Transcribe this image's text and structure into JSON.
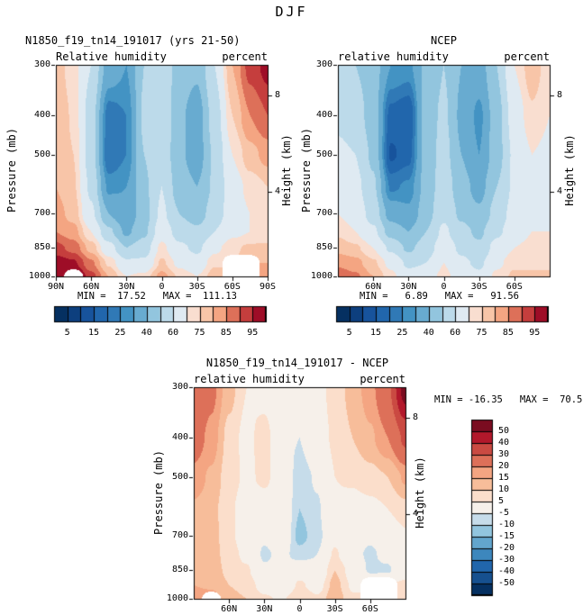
{
  "page_title": "DJF",
  "colors": {
    "background": "#ffffff",
    "axis": "#000000",
    "rh_palette": [
      "#053061",
      "#0d3f7e",
      "#17539c",
      "#2166ac",
      "#3079b6",
      "#4393c3",
      "#68abd0",
      "#92c5de",
      "#bcdaea",
      "#dfeaf2",
      "#f9ded0",
      "#f8c5a8",
      "#f4a582",
      "#dd7059",
      "#c53e3d",
      "#9e0d27"
    ],
    "diff_palette": [
      "#053061",
      "#16508f",
      "#2166ac",
      "#3d87bd",
      "#62a5cd",
      "#92c5de",
      "#c6dcea",
      "#f6f0ea",
      "#fbdecb",
      "#f7bd9a",
      "#f4a582",
      "#dd7059",
      "#ca4a42",
      "#b2182b",
      "#7a0c20"
    ]
  },
  "chart_data": [
    {
      "type": "heatmap",
      "title": "N1850_f19_tn14_191017 (yrs 21-50)",
      "subtitle_left": "Relative humidity",
      "subtitle_right": "percent",
      "ylabel": "Pressure (mb)",
      "ylabel_right": "Height (km)",
      "minmax": "MIN =  17.52   MAX =  111.13",
      "palette": "rh_palette",
      "levels": [
        5,
        10,
        15,
        20,
        25,
        30,
        40,
        50,
        60,
        70,
        75,
        80,
        85,
        90,
        95
      ],
      "colorbar_labels": [
        "5",
        "15",
        "25",
        "40",
        "60",
        "75",
        "85",
        "95"
      ],
      "y_scale": "log",
      "y_range": [
        300,
        1000
      ],
      "x_range": [
        90,
        -90
      ],
      "y_ticks": [
        300,
        400,
        500,
        700,
        850,
        1000
      ],
      "height_ticks": [
        {
          "label": "8",
          "p": 356.5
        },
        {
          "label": "4",
          "p": 616.6
        }
      ],
      "x_ticks": [
        {
          "label": "90N",
          "lat": 90
        },
        {
          "label": "60N",
          "lat": 60
        },
        {
          "label": "30N",
          "lat": 30
        },
        {
          "label": "0",
          "lat": 0
        },
        {
          "label": "30S",
          "lat": -30
        },
        {
          "label": "60S",
          "lat": -60
        },
        {
          "label": "90S",
          "lat": -90
        }
      ],
      "lats": [
        90,
        75,
        60,
        45,
        30,
        15,
        0,
        -15,
        -30,
        -45,
        -60,
        -75,
        -90
      ],
      "pressures": [
        300,
        400,
        500,
        600,
        700,
        775,
        850,
        925,
        1000
      ],
      "values": [
        [
          78,
          72,
          60,
          35,
          30,
          50,
          58,
          45,
          42,
          60,
          80,
          92,
          97
        ],
        [
          80,
          74,
          55,
          22,
          25,
          52,
          60,
          42,
          35,
          55,
          75,
          85,
          90
        ],
        [
          80,
          75,
          55,
          20,
          25,
          50,
          58,
          42,
          35,
          52,
          70,
          78,
          82
        ],
        [
          80,
          76,
          58,
          28,
          30,
          48,
          60,
          45,
          40,
          52,
          66,
          72,
          75
        ],
        [
          82,
          78,
          62,
          40,
          32,
          46,
          62,
          50,
          45,
          55,
          65,
          70,
          72
        ],
        [
          85,
          82,
          70,
          52,
          38,
          48,
          66,
          56,
          52,
          60,
          68,
          70,
          72
        ],
        [
          92,
          88,
          78,
          64,
          50,
          55,
          72,
          62,
          58,
          68,
          74,
          76,
          76
        ],
        [
          98,
          96,
          86,
          74,
          62,
          62,
          76,
          68,
          64,
          74,
          null,
          null,
          80
        ],
        [
          104,
          null,
          92,
          80,
          70,
          72,
          82,
          74,
          70,
          78,
          null,
          null,
          85
        ]
      ]
    },
    {
      "type": "heatmap",
      "title": "NCEP",
      "subtitle_left": "relative humidity",
      "subtitle_right": "percent",
      "ylabel": "Pressure (mb)",
      "ylabel_right": "Height (km)",
      "minmax": "MIN =   6.89   MAX =   91.56",
      "palette": "rh_palette",
      "levels": [
        5,
        10,
        15,
        20,
        25,
        30,
        40,
        50,
        60,
        70,
        75,
        80,
        85,
        90,
        95
      ],
      "colorbar_labels": [
        "5",
        "15",
        "25",
        "40",
        "60",
        "75",
        "85",
        "95"
      ],
      "y_scale": "log",
      "y_range": [
        300,
        1000
      ],
      "x_range": [
        90,
        -90
      ],
      "y_ticks": [
        300,
        400,
        500,
        700,
        850,
        1000
      ],
      "height_ticks": [
        {
          "label": "8",
          "p": 356.5
        },
        {
          "label": "4",
          "p": 616.6
        }
      ],
      "x_ticks": [
        {
          "label": "60N",
          "lat": 60
        },
        {
          "label": "30N",
          "lat": 30
        },
        {
          "label": "0",
          "lat": 0
        },
        {
          "label": "30S",
          "lat": -30
        },
        {
          "label": "60S",
          "lat": -60
        }
      ],
      "lats": [
        90,
        75,
        60,
        45,
        30,
        15,
        0,
        -15,
        -30,
        -45,
        -60,
        -75,
        -90
      ],
      "pressures": [
        300,
        400,
        500,
        600,
        700,
        775,
        850,
        925,
        1000
      ],
      "values": [
        [
          52,
          50,
          45,
          30,
          28,
          42,
          50,
          40,
          35,
          50,
          70,
          78,
          72
        ],
        [
          58,
          55,
          45,
          18,
          15,
          45,
          52,
          38,
          28,
          46,
          65,
          74,
          70
        ],
        [
          62,
          60,
          48,
          14,
          18,
          44,
          54,
          40,
          30,
          46,
          62,
          70,
          68
        ],
        [
          66,
          63,
          52,
          24,
          26,
          44,
          56,
          44,
          36,
          50,
          62,
          68,
          68
        ],
        [
          70,
          66,
          56,
          36,
          32,
          46,
          58,
          48,
          42,
          54,
          64,
          68,
          68
        ],
        [
          74,
          70,
          62,
          46,
          40,
          50,
          62,
          53,
          48,
          58,
          66,
          70,
          70
        ],
        [
          78,
          76,
          70,
          58,
          48,
          55,
          66,
          58,
          52,
          64,
          70,
          72,
          72
        ],
        [
          84,
          82,
          76,
          68,
          58,
          60,
          70,
          62,
          58,
          68,
          74,
          74,
          74
        ],
        [
          88,
          86,
          80,
          72,
          64,
          66,
          72,
          66,
          62,
          72,
          76,
          76,
          76
        ]
      ]
    },
    {
      "type": "heatmap",
      "title": "N1850_f19_tn14_191017 - NCEP",
      "subtitle_left": "relative humidity",
      "subtitle_right": "percent",
      "ylabel": "Pressure (mb)",
      "ylabel_right": "Height (km)",
      "minmax": "MIN = -16.35   MAX =  70.52",
      "palette": "diff_palette",
      "levels": [
        -50,
        -40,
        -30,
        -20,
        -15,
        -10,
        -5,
        5,
        10,
        15,
        20,
        30,
        40,
        50
      ],
      "colorbar_labels": [
        "50",
        "40",
        "30",
        "20",
        "15",
        "10",
        "5",
        "-5",
        "-10",
        "-15",
        "-20",
        "-30",
        "-40",
        "-50"
      ],
      "y_scale": "log",
      "y_range": [
        300,
        1000
      ],
      "x_range": [
        90,
        -90
      ],
      "y_ticks": [
        300,
        400,
        500,
        700,
        850,
        1000
      ],
      "height_ticks": [
        {
          "label": "8",
          "p": 356.5
        },
        {
          "label": "4",
          "p": 616.6
        }
      ],
      "x_ticks": [
        {
          "label": "60N",
          "lat": 60
        },
        {
          "label": "30N",
          "lat": 30
        },
        {
          "label": "0",
          "lat": 0
        },
        {
          "label": "30S",
          "lat": -30
        },
        {
          "label": "60S",
          "lat": -60
        }
      ],
      "lats": [
        90,
        75,
        60,
        45,
        30,
        15,
        0,
        -15,
        -30,
        -45,
        -60,
        -75,
        -90
      ],
      "pressures": [
        300,
        400,
        500,
        600,
        700,
        775,
        850,
        925,
        1000
      ],
      "values": [
        [
          30,
          22,
          12,
          5,
          2,
          -5,
          -3,
          3,
          7,
          12,
          18,
          28,
          55
        ],
        [
          24,
          18,
          8,
          3,
          8,
          -3,
          -5,
          2,
          6,
          10,
          14,
          20,
          32
        ],
        [
          18,
          14,
          7,
          4,
          6,
          2,
          -8,
          -4,
          5,
          6,
          8,
          10,
          16
        ],
        [
          14,
          12,
          6,
          2,
          2,
          3,
          -10,
          -6,
          4,
          2,
          3,
          5,
          8
        ],
        [
          13,
          12,
          7,
          0,
          -4,
          2,
          -12,
          -7,
          3,
          -2,
          -4,
          0,
          4
        ],
        [
          12,
          12,
          8,
          3,
          -6,
          -3,
          -8,
          -5,
          6,
          -3,
          -6,
          -3,
          2
        ],
        [
          14,
          12,
          9,
          6,
          -4,
          -4,
          2,
          -3,
          10,
          2,
          -6,
          -6,
          3
        ],
        [
          15,
          14,
          10,
          8,
          2,
          -2,
          6,
          2,
          12,
          4,
          null,
          null,
          6
        ],
        [
          18,
          null,
          12,
          10,
          6,
          4,
          10,
          6,
          14,
          6,
          null,
          null,
          9
        ]
      ]
    }
  ]
}
